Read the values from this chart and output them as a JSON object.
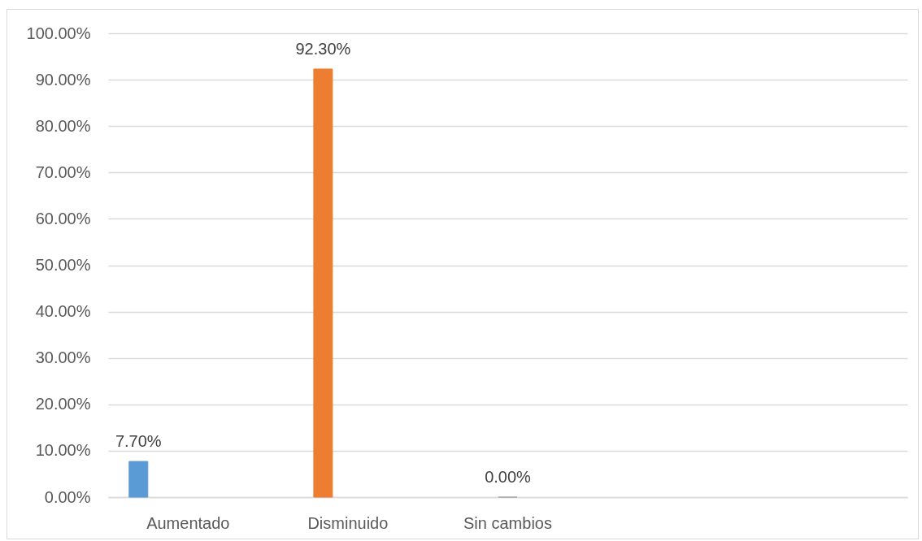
{
  "chart_data": {
    "type": "bar",
    "categories": [
      "Aumentado",
      "Disminuido",
      "Sin cambios",
      null,
      null
    ],
    "series": [
      {
        "color": "#5b9bd5",
        "values": [
          7.7,
          null,
          null,
          null,
          null
        ],
        "value_labels": [
          "7.70%",
          null,
          null,
          null,
          null
        ]
      },
      {
        "color": "#ed7d31",
        "values": [
          null,
          92.3,
          null,
          null,
          null
        ],
        "value_labels": [
          null,
          "92.30%",
          null,
          null,
          null
        ]
      },
      {
        "color": "#a5a5a5",
        "values": [
          null,
          null,
          0,
          null,
          null
        ],
        "value_labels": [
          null,
          null,
          "0.00%",
          null,
          null
        ]
      }
    ],
    "ylim": [
      0,
      100
    ],
    "yticks": [
      {
        "value": 0,
        "label": "0.00%"
      },
      {
        "value": 10,
        "label": "10.00%"
      },
      {
        "value": 20,
        "label": "20.00%"
      },
      {
        "value": 30,
        "label": "30.00%"
      },
      {
        "value": 40,
        "label": "40.00%"
      },
      {
        "value": 50,
        "label": "50.00%"
      },
      {
        "value": 60,
        "label": "60.00%"
      },
      {
        "value": 70,
        "label": "70.00%"
      },
      {
        "value": 80,
        "label": "80.00%"
      },
      {
        "value": 90,
        "label": "90.00%"
      },
      {
        "value": 100,
        "label": "100.00%"
      }
    ],
    "grid": "y",
    "legend": false
  }
}
